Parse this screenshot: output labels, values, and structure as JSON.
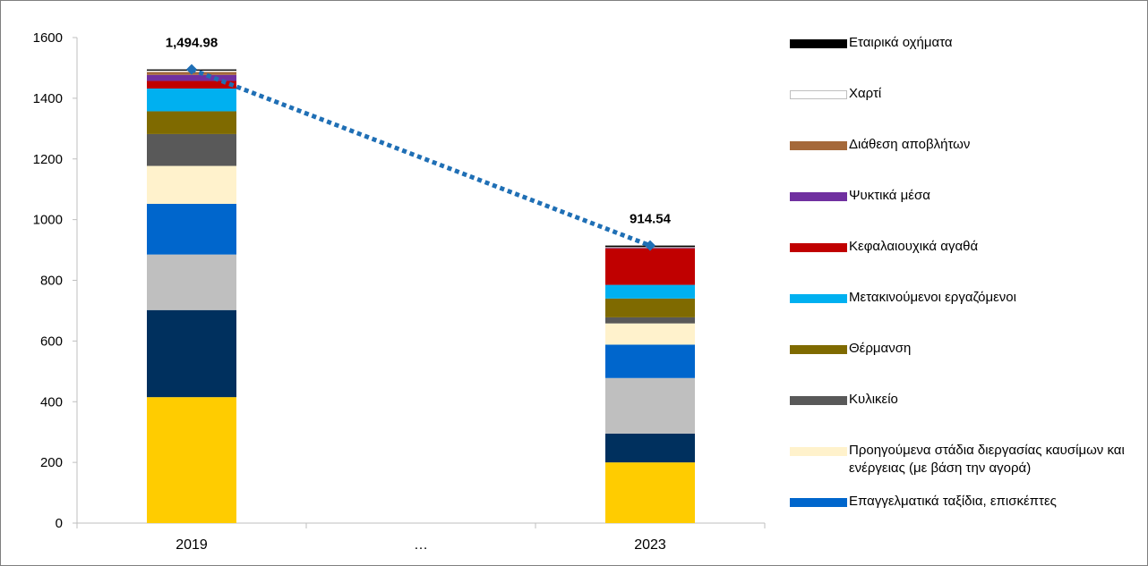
{
  "chart_data": {
    "type": "bar",
    "stacked": true,
    "categories": [
      "2019",
      "…",
      "2023"
    ],
    "ylim": [
      0,
      1600
    ],
    "yticks": [
      0,
      200,
      400,
      600,
      800,
      1000,
      1200,
      1400,
      1600
    ],
    "gridlines": false,
    "legend_position": "right",
    "series": [
      {
        "name": "",
        "color": "#ffcc00",
        "values": [
          415,
          null,
          200
        ]
      },
      {
        "name": "",
        "color": "#00305e",
        "values": [
          287,
          null,
          95
        ]
      },
      {
        "name": "",
        "color": "#bfbfbf",
        "values": [
          183,
          null,
          183
        ]
      },
      {
        "name": "Επαγγελματικά ταξίδια, επισκέπτες",
        "color": "#0066cc",
        "values": [
          167,
          null,
          110
        ]
      },
      {
        "name": "Προηγούμενα στάδια διεργασίας καυσίμων και ενέργειας (με βάση την αγορά)",
        "color": "#fff2cc",
        "values": [
          125,
          null,
          70
        ]
      },
      {
        "name": "Κυλικείο",
        "color": "#595959",
        "values": [
          105,
          null,
          20
        ]
      },
      {
        "name": "Θέρμανση",
        "color": "#7f6a00",
        "values": [
          75,
          null,
          62
        ]
      },
      {
        "name": "Μετακινούμενοι εργαζόμενοι",
        "color": "#00b0f0",
        "values": [
          75,
          null,
          45
        ]
      },
      {
        "name": "Κεφαλαιουχικά αγαθά",
        "color": "#c00000",
        "values": [
          25,
          null,
          120
        ]
      },
      {
        "name": "Ψυκτικά μέσα",
        "color": "#7030a0",
        "values": [
          20,
          null,
          2
        ]
      },
      {
        "name": "Διάθεση αποβλήτων",
        "color": "#a5693a",
        "values": [
          10,
          null,
          2
        ]
      },
      {
        "name": "Χαρτί",
        "color": "#ffffff",
        "values": [
          4,
          null,
          1
        ]
      },
      {
        "name": "Εταιρικά οχήματα",
        "color": "#000000",
        "values": [
          4,
          null,
          4.54
        ]
      }
    ],
    "totals": {
      "name": "",
      "values": [
        1494.98,
        null,
        914.54
      ],
      "labels": [
        "1,494.98",
        "",
        "914.54"
      ],
      "color": "#1f6fb5",
      "style": "dotted-line-with-diamond-markers"
    }
  }
}
